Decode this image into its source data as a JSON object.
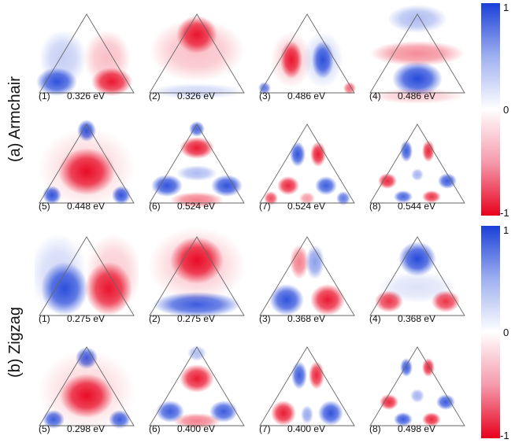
{
  "rows": [
    {
      "label": "(a)  Armchair",
      "panels": [
        {
          "num": "(1)",
          "energy": "0.326 eV",
          "pattern": "armchair-1"
        },
        {
          "num": "(2)",
          "energy": "0.326 eV",
          "pattern": "armchair-2"
        },
        {
          "num": "(3)",
          "energy": "0.486 eV",
          "pattern": "armchair-3"
        },
        {
          "num": "(4)",
          "energy": "0.486 eV",
          "pattern": "armchair-4"
        },
        {
          "num": "(5)",
          "energy": "0.448 eV",
          "pattern": "armchair-5"
        },
        {
          "num": "(6)",
          "energy": "0.524 eV",
          "pattern": "armchair-6"
        },
        {
          "num": "(7)",
          "energy": "0.524 eV",
          "pattern": "armchair-7"
        },
        {
          "num": "(8)",
          "energy": "0.544 eV",
          "pattern": "armchair-8"
        }
      ]
    },
    {
      "label": "(b)  Zigzag",
      "panels": [
        {
          "num": "(1)",
          "energy": "0.275 eV",
          "pattern": "zigzag-1"
        },
        {
          "num": "(2)",
          "energy": "0.275 eV",
          "pattern": "zigzag-2"
        },
        {
          "num": "(3)",
          "energy": "0.368 eV",
          "pattern": "zigzag-3"
        },
        {
          "num": "(4)",
          "energy": "0.368 eV",
          "pattern": "zigzag-4"
        },
        {
          "num": "(5)",
          "energy": "0.298 eV",
          "pattern": "zigzag-5"
        },
        {
          "num": "(6)",
          "energy": "0.400 eV",
          "pattern": "zigzag-6"
        },
        {
          "num": "(7)",
          "energy": "0.400 eV",
          "pattern": "zigzag-7"
        },
        {
          "num": "(8)",
          "energy": "0.498 eV",
          "pattern": "zigzag-8"
        }
      ]
    }
  ],
  "colorbar": {
    "ticks": {
      "max": "1",
      "mid": "0",
      "min": "-1"
    },
    "colors": {
      "positive": "#1a3fd8",
      "zero": "#ffffff",
      "negative": "#e8001c"
    }
  }
}
